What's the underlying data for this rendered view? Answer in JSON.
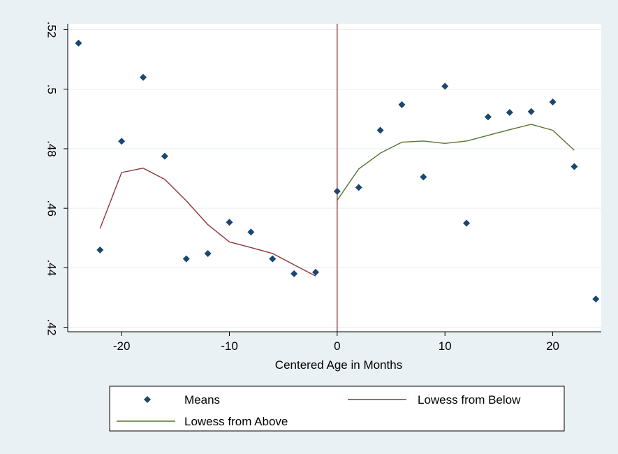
{
  "chart_data": {
    "type": "scatter",
    "title": "",
    "xlabel": "Centered Age in Months",
    "ylabel": "",
    "xlim": [
      -25,
      24.5
    ],
    "ylim": [
      0.4185,
      0.522
    ],
    "x_ticks": [
      -20,
      -10,
      0,
      10,
      20
    ],
    "x_tick_labels": [
      "-20",
      "-10",
      "0",
      "10",
      "20"
    ],
    "y_ticks": [
      0.42,
      0.44,
      0.46,
      0.48,
      0.5,
      0.52
    ],
    "y_tick_labels": [
      ".42",
      ".44",
      ".46",
      ".48",
      ".5",
      ".52"
    ],
    "grid": "horizontal",
    "legend_position": "bottom",
    "cutoff_line_x": 0,
    "colors": {
      "page_background": "#eaf1f4",
      "plot_background": "#ffffff",
      "gridline": "#e6edf0",
      "markers": "#1a476f",
      "lowess_below": "#90353b",
      "lowess_above": "#55752f",
      "cutoff_line": "#90353b"
    },
    "series": [
      {
        "name": "Means",
        "kind": "markers",
        "points": [
          [
            -24,
            0.5155
          ],
          [
            -22,
            0.446
          ],
          [
            -20,
            0.4825
          ],
          [
            -18,
            0.504
          ],
          [
            -16,
            0.4775
          ],
          [
            -14,
            0.443
          ],
          [
            -12,
            0.4448
          ],
          [
            -10,
            0.4553
          ],
          [
            -8,
            0.452
          ],
          [
            -6,
            0.443
          ],
          [
            -4,
            0.438
          ],
          [
            -2,
            0.4385
          ],
          [
            0,
            0.4657
          ],
          [
            2,
            0.467
          ],
          [
            4,
            0.4862
          ],
          [
            6,
            0.4948
          ],
          [
            8,
            0.4705
          ],
          [
            10,
            0.501
          ],
          [
            12,
            0.455
          ],
          [
            14,
            0.4907
          ],
          [
            16,
            0.4922
          ],
          [
            18,
            0.4925
          ],
          [
            20,
            0.4957
          ],
          [
            22,
            0.474
          ],
          [
            24,
            0.4295
          ]
        ]
      },
      {
        "name": "Lowess from Below",
        "kind": "line",
        "points": [
          [
            -22,
            0.4532
          ],
          [
            -20,
            0.472
          ],
          [
            -18,
            0.4735
          ],
          [
            -16,
            0.4697
          ],
          [
            -14,
            0.4625
          ],
          [
            -12,
            0.4545
          ],
          [
            -10,
            0.4487
          ],
          [
            -8,
            0.4468
          ],
          [
            -6,
            0.4448
          ],
          [
            -4,
            0.441
          ],
          [
            -2,
            0.4372
          ]
        ]
      },
      {
        "name": "Lowess from Above",
        "kind": "line",
        "points": [
          [
            0,
            0.4627
          ],
          [
            2,
            0.4732
          ],
          [
            4,
            0.4785
          ],
          [
            6,
            0.4822
          ],
          [
            8,
            0.4826
          ],
          [
            10,
            0.4818
          ],
          [
            12,
            0.4826
          ],
          [
            14,
            0.4845
          ],
          [
            16,
            0.4864
          ],
          [
            18,
            0.4882
          ],
          [
            20,
            0.4862
          ],
          [
            22,
            0.4795
          ]
        ]
      }
    ]
  }
}
